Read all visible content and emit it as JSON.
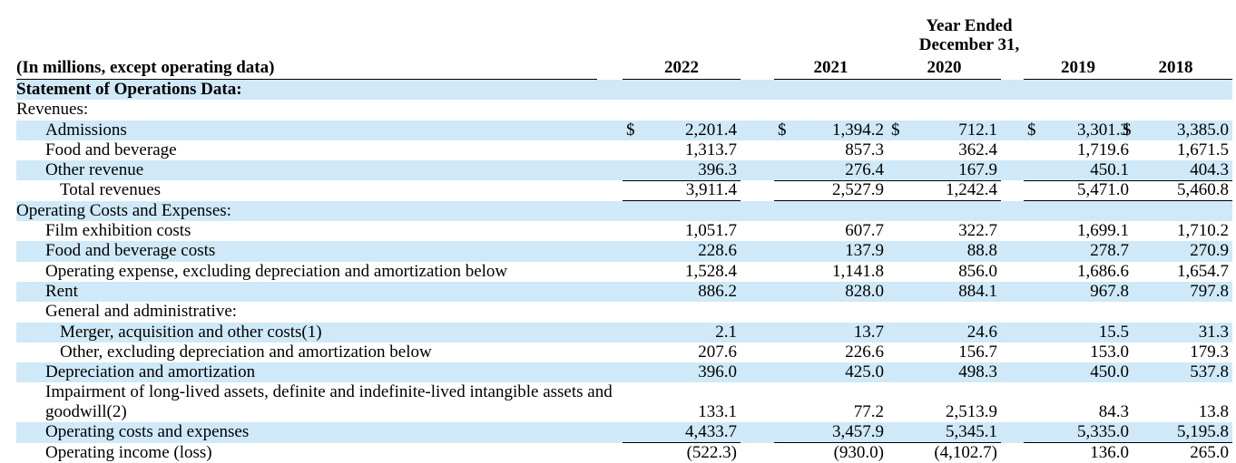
{
  "header": {
    "year_ended_line1": "Year Ended",
    "year_ended_line2": "December 31,",
    "unit_label": "(In millions, except operating data)",
    "years": [
      "2022",
      "2021",
      "2020",
      "2019",
      "2018"
    ]
  },
  "rows": [
    {
      "label": "Statement of Operations Data:",
      "bold": true,
      "indent": 0,
      "values": [
        "",
        "",
        "",
        "",
        ""
      ]
    },
    {
      "label": "Revenues:",
      "indent": 0,
      "values": [
        "",
        "",
        "",
        "",
        ""
      ]
    },
    {
      "label": "Admissions",
      "indent": 1,
      "dollar": true,
      "values": [
        "2,201.4",
        "1,394.2",
        "712.1",
        "3,301.3",
        "3,385.0"
      ]
    },
    {
      "label": "Food and beverage",
      "indent": 1,
      "values": [
        "1,313.7",
        "857.3",
        "362.4",
        "1,719.6",
        "1,671.5"
      ]
    },
    {
      "label": "Other revenue",
      "indent": 1,
      "underline": true,
      "values": [
        "396.3",
        "276.4",
        "167.9",
        "450.1",
        "404.3"
      ]
    },
    {
      "label": "Total revenues",
      "indent": 2,
      "underline": true,
      "values": [
        "3,911.4",
        "2,527.9",
        "1,242.4",
        "5,471.0",
        "5,460.8"
      ]
    },
    {
      "label": "Operating Costs and Expenses:",
      "indent": 0,
      "values": [
        "",
        "",
        "",
        "",
        ""
      ]
    },
    {
      "label": "Film exhibition costs",
      "indent": 1,
      "values": [
        "1,051.7",
        "607.7",
        "322.7",
        "1,699.1",
        "1,710.2"
      ]
    },
    {
      "label": "Food and beverage costs",
      "indent": 1,
      "values": [
        "228.6",
        "137.9",
        "88.8",
        "278.7",
        "270.9"
      ]
    },
    {
      "label": "Operating expense, excluding depreciation and amortization below",
      "indent": 1,
      "values": [
        "1,528.4",
        "1,141.8",
        "856.0",
        "1,686.6",
        "1,654.7"
      ]
    },
    {
      "label": "Rent",
      "indent": 1,
      "values": [
        "886.2",
        "828.0",
        "884.1",
        "967.8",
        "797.8"
      ]
    },
    {
      "label": "General and administrative:",
      "indent": 1,
      "values": [
        "",
        "",
        "",
        "",
        ""
      ]
    },
    {
      "label": "Merger, acquisition and other costs(1)",
      "indent": 2,
      "values": [
        "2.1",
        "13.7",
        "24.6",
        "15.5",
        "31.3"
      ]
    },
    {
      "label": "Other, excluding depreciation and amortization below",
      "indent": 2,
      "values": [
        "207.6",
        "226.6",
        "156.7",
        "153.0",
        "179.3"
      ]
    },
    {
      "label": "Depreciation and amortization",
      "indent": 1,
      "values": [
        "396.0",
        "425.0",
        "498.3",
        "450.0",
        "537.8"
      ]
    },
    {
      "label": "Impairment of long-lived assets, definite and indefinite-lived intangible assets and goodwill(2)",
      "indent": 1,
      "tall": true,
      "underline": true,
      "values": [
        "133.1",
        "77.2",
        "2,513.9",
        "84.3",
        "13.8"
      ]
    },
    {
      "label": "Operating costs and expenses",
      "indent": 1,
      "underline": true,
      "values": [
        "4,433.7",
        "3,457.9",
        "5,345.1",
        "5,335.0",
        "5,195.8"
      ]
    },
    {
      "label": "Operating income (loss)",
      "indent": 1,
      "values": [
        "(522.3)",
        "(930.0)",
        "(4,102.7)",
        "136.0",
        "265.0"
      ]
    }
  ],
  "colors": {
    "band": "#cfe9f8"
  }
}
